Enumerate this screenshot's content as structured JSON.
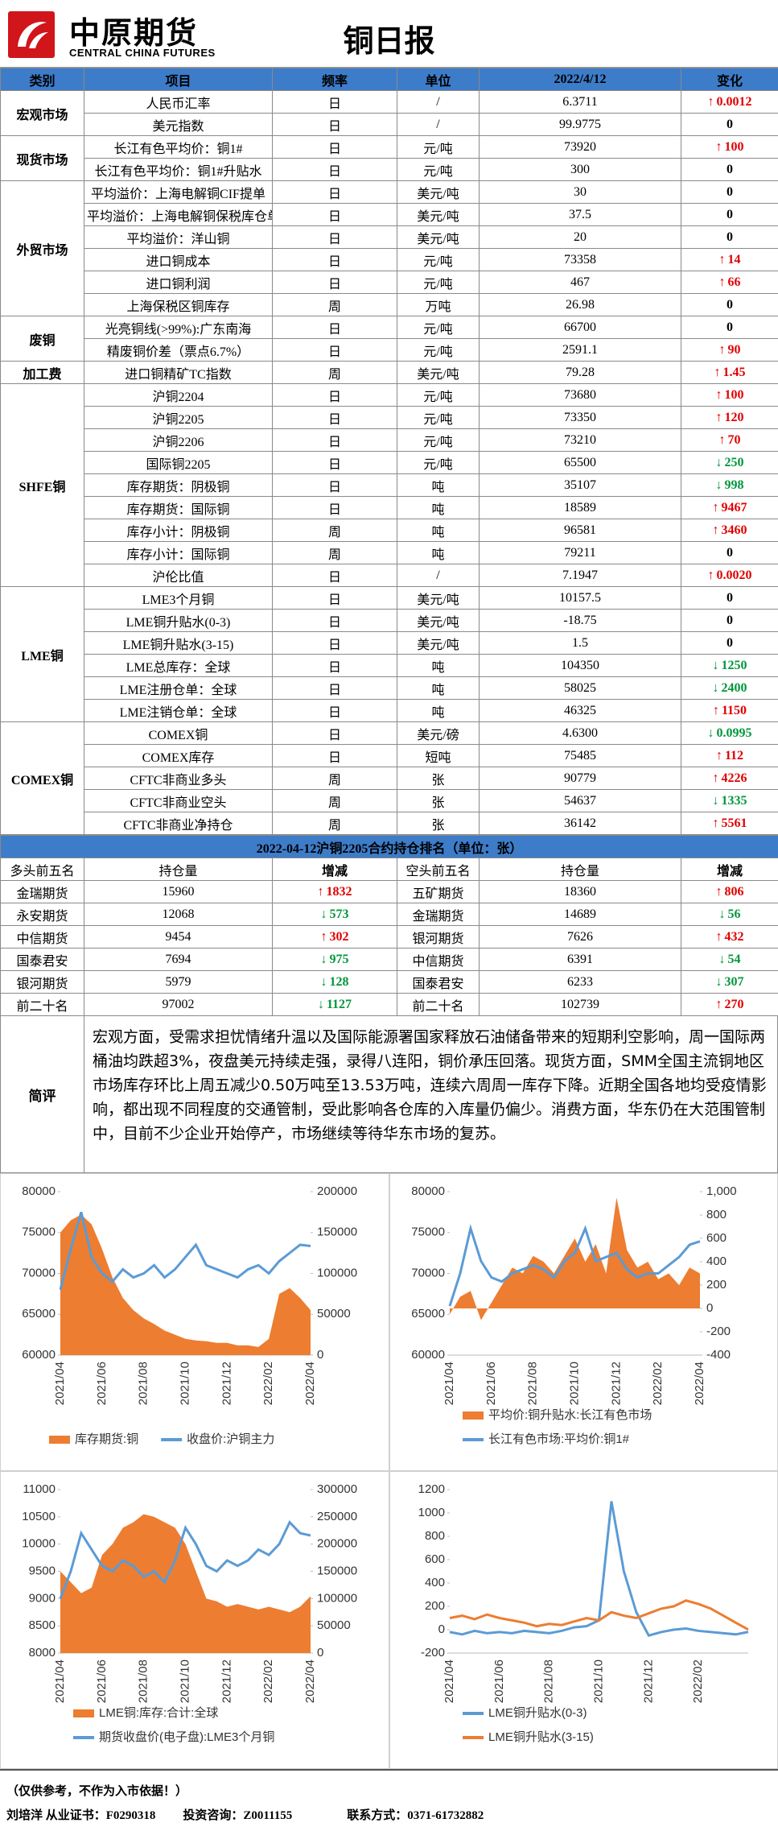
{
  "header": {
    "logo_cn": "中原期货",
    "logo_en": "CENTRAL CHINA FUTURES",
    "title": "铜日报"
  },
  "table": {
    "header": [
      "类别",
      "项目",
      "频率",
      "单位",
      "2022/4/12",
      "变化"
    ],
    "sections": [
      {
        "category": "宏观市场",
        "rows": [
          {
            "item": "人民币汇率",
            "freq": "日",
            "unit": "/",
            "value": "6.3711",
            "change": "0.0012",
            "dir": "up"
          },
          {
            "item": "美元指数",
            "freq": "日",
            "unit": "/",
            "value": "99.9775",
            "change": "0"
          }
        ]
      },
      {
        "category": "现货市场",
        "rows": [
          {
            "item": "长江有色平均价：铜1#",
            "freq": "日",
            "unit": "元/吨",
            "value": "73920",
            "change": "100",
            "dir": "up"
          },
          {
            "item": "长江有色平均价：铜1#升贴水",
            "freq": "日",
            "unit": "元/吨",
            "value": "300",
            "change": "0"
          }
        ]
      },
      {
        "category": "外贸市场",
        "rows": [
          {
            "item": "平均溢价：上海电解铜CIF提单",
            "freq": "日",
            "unit": "美元/吨",
            "value": "30",
            "change": "0"
          },
          {
            "item": "平均溢价：上海电解铜保税库仓单",
            "freq": "日",
            "unit": "美元/吨",
            "value": "37.5",
            "change": "0"
          },
          {
            "item": "平均溢价：洋山铜",
            "freq": "日",
            "unit": "美元/吨",
            "value": "20",
            "change": "0"
          },
          {
            "item": "进口铜成本",
            "freq": "日",
            "unit": "元/吨",
            "value": "73358",
            "change": "14",
            "dir": "up"
          },
          {
            "item": "进口铜利润",
            "freq": "日",
            "unit": "元/吨",
            "value": "467",
            "change": "66",
            "dir": "up"
          },
          {
            "item": "上海保税区铜库存",
            "freq": "周",
            "unit": "万吨",
            "value": "26.98",
            "change": "0"
          }
        ]
      },
      {
        "category": "废铜",
        "rows": [
          {
            "item": "光亮铜线(>99%):广东南海",
            "freq": "日",
            "unit": "元/吨",
            "value": "66700",
            "change": "0"
          },
          {
            "item": "精废铜价差（票点6.7%）",
            "freq": "日",
            "unit": "元/吨",
            "value": "2591.1",
            "change": "90",
            "dir": "up"
          }
        ]
      },
      {
        "category": "加工费",
        "rows": [
          {
            "item": "进口铜精矿TC指数",
            "freq": "周",
            "unit": "美元/吨",
            "value": "79.28",
            "change": "1.45",
            "dir": "up"
          }
        ]
      },
      {
        "category": "SHFE铜",
        "rows": [
          {
            "item": "沪铜2204",
            "freq": "日",
            "unit": "元/吨",
            "value": "73680",
            "change": "100",
            "dir": "up"
          },
          {
            "item": "沪铜2205",
            "freq": "日",
            "unit": "元/吨",
            "value": "73350",
            "change": "120",
            "dir": "up"
          },
          {
            "item": "沪铜2206",
            "freq": "日",
            "unit": "元/吨",
            "value": "73210",
            "change": "70",
            "dir": "up"
          },
          {
            "item": "国际铜2205",
            "freq": "日",
            "unit": "元/吨",
            "value": "65500",
            "change": "250",
            "dir": "down"
          },
          {
            "item": "库存期货：阴极铜",
            "freq": "日",
            "unit": "吨",
            "value": "35107",
            "change": "998",
            "dir": "down"
          },
          {
            "item": "库存期货：国际铜",
            "freq": "日",
            "unit": "吨",
            "value": "18589",
            "change": "9467",
            "dir": "up"
          },
          {
            "item": "库存小计：阴极铜",
            "freq": "周",
            "unit": "吨",
            "value": "96581",
            "change": "3460",
            "dir": "up"
          },
          {
            "item": "库存小计：国际铜",
            "freq": "周",
            "unit": "吨",
            "value": "79211",
            "change": "0"
          },
          {
            "item": "沪伦比值",
            "freq": "日",
            "unit": "/",
            "value": "7.1947",
            "change": "0.0020",
            "dir": "up"
          }
        ]
      },
      {
        "category": "LME铜",
        "rows": [
          {
            "item": "LME3个月铜",
            "freq": "日",
            "unit": "美元/吨",
            "value": "10157.5",
            "change": "0"
          },
          {
            "item": "LME铜升贴水(0-3)",
            "freq": "日",
            "unit": "美元/吨",
            "value": "-18.75",
            "change": "0"
          },
          {
            "item": "LME铜升贴水(3-15)",
            "freq": "日",
            "unit": "美元/吨",
            "value": "1.5",
            "change": "0"
          },
          {
            "item": "LME总库存：全球",
            "freq": "日",
            "unit": "吨",
            "value": "104350",
            "change": "1250",
            "dir": "down"
          },
          {
            "item": "LME注册仓单：全球",
            "freq": "日",
            "unit": "吨",
            "value": "58025",
            "change": "2400",
            "dir": "down"
          },
          {
            "item": "LME注销仓单：全球",
            "freq": "日",
            "unit": "吨",
            "value": "46325",
            "change": "1150",
            "dir": "up"
          }
        ]
      },
      {
        "category": "COMEX铜",
        "rows": [
          {
            "item": "COMEX铜",
            "freq": "日",
            "unit": "美元/磅",
            "value": "4.6300",
            "change": "0.0995",
            "dir": "down"
          },
          {
            "item": "COMEX库存",
            "freq": "日",
            "unit": "短吨",
            "value": "75485",
            "change": "112",
            "dir": "up"
          },
          {
            "item": "CFTC非商业多头",
            "freq": "周",
            "unit": "张",
            "value": "90779",
            "change": "4226",
            "dir": "up"
          },
          {
            "item": "CFTC非商业空头",
            "freq": "周",
            "unit": "张",
            "value": "54637",
            "change": "1335",
            "dir": "down"
          },
          {
            "item": "CFTC非商业净持仓",
            "freq": "周",
            "unit": "张",
            "value": "36142",
            "change": "5561",
            "dir": "up"
          }
        ]
      }
    ]
  },
  "position": {
    "title": "2022-04-12沪铜2205合约持仓排名（单位：张）",
    "header": [
      "多头前五名",
      "持仓量",
      "增减",
      "空头前五名",
      "持仓量",
      "增减"
    ],
    "rows": [
      {
        "long": {
          "name": "金瑞期货",
          "volume": "15960",
          "change": "1832",
          "dir": "up"
        },
        "short": {
          "name": "五矿期货",
          "volume": "18360",
          "change": "806",
          "dir": "up"
        }
      },
      {
        "long": {
          "name": "永安期货",
          "volume": "12068",
          "change": "573",
          "dir": "down"
        },
        "short": {
          "name": "金瑞期货",
          "volume": "14689",
          "change": "56",
          "dir": "down"
        }
      },
      {
        "long": {
          "name": "中信期货",
          "volume": "9454",
          "change": "302",
          "dir": "up"
        },
        "short": {
          "name": "银河期货",
          "volume": "7626",
          "change": "432",
          "dir": "up"
        }
      },
      {
        "long": {
          "name": "国泰君安",
          "volume": "7694",
          "change": "975",
          "dir": "down"
        },
        "short": {
          "name": "中信期货",
          "volume": "6391",
          "change": "54",
          "dir": "down"
        }
      },
      {
        "long": {
          "name": "银河期货",
          "volume": "5979",
          "change": "128",
          "dir": "down"
        },
        "short": {
          "name": "国泰君安",
          "volume": "6233",
          "change": "307",
          "dir": "down"
        }
      },
      {
        "long": {
          "name": "前二十名",
          "volume": "97002",
          "change": "1127",
          "dir": "down"
        },
        "short": {
          "name": "前二十名",
          "volume": "102739",
          "change": "270",
          "dir": "up"
        }
      }
    ]
  },
  "review": {
    "label": "简评",
    "text": "宏观方面，受需求担忧情绪升温以及国际能源署国家释放石油储备带来的短期利空影响，周一国际两桶油均跌超3%，夜盘美元持续走强，录得八连阳，铜价承压回落。现货方面，SMM全国主流铜地区市场库存环比上周五减少0.50万吨至13.53万吨，连续六周周一库存下降。近期全国各地均受疫情影响，都出现不同程度的交通管制，受此影响各仓库的入库量仍偏少。消费方面，华东仍在大范围管制中，目前不少企业开始停产，市场继续等待华东市场的复苏。"
  },
  "charts": [
    {
      "type": "combo",
      "x": [
        "2021/04",
        null,
        null,
        null,
        "2021/06",
        null,
        null,
        null,
        "2021/08",
        null,
        null,
        null,
        "2021/10",
        null,
        null,
        null,
        "2021/12",
        null,
        null,
        null,
        "2022/02",
        null,
        null,
        null,
        "2022/04"
      ],
      "ylim": [
        60000,
        80000
      ],
      "yticks": [
        60000,
        65000,
        70000,
        75000,
        80000
      ],
      "y2lim": [
        0,
        200000
      ],
      "y2ticks": [
        0,
        50000,
        100000,
        150000,
        200000
      ],
      "series": [
        {
          "name": "库存期货:铜",
          "color": "#ed7d31",
          "kind": "area",
          "axis": "y2",
          "values": [
            150000,
            165000,
            172000,
            160000,
            130000,
            95000,
            70000,
            55000,
            45000,
            38000,
            30000,
            25000,
            20000,
            18000,
            17000,
            15000,
            15000,
            12000,
            12000,
            10000,
            20000,
            75000,
            82000,
            70000,
            55000
          ]
        },
        {
          "name": "收盘价:沪铜主力",
          "color": "#5b9bd5",
          "kind": "line",
          "axis": "y",
          "values": [
            68000,
            73000,
            77500,
            72000,
            70000,
            69000,
            70500,
            69500,
            70000,
            71000,
            69500,
            70500,
            72000,
            73500,
            71000,
            70500,
            70000,
            69500,
            70500,
            71000,
            70000,
            71500,
            72500,
            73500,
            73350
          ]
        }
      ]
    },
    {
      "type": "combo",
      "x": [
        "2021/04",
        null,
        null,
        null,
        "2021/06",
        null,
        null,
        null,
        "2021/08",
        null,
        null,
        null,
        "2021/10",
        null,
        null,
        null,
        "2021/12",
        null,
        null,
        null,
        "2022/02",
        null,
        null,
        null,
        "2022/04"
      ],
      "ylim": [
        60000,
        80000
      ],
      "yticks": [
        60000,
        65000,
        70000,
        75000,
        80000
      ],
      "y2lim": [
        -400,
        1000
      ],
      "y2ticks": [
        -400,
        -200,
        0,
        200,
        400,
        600,
        800,
        {
          "value": 1000,
          "label": "1,000"
        }
      ],
      "series": [
        {
          "name": "平均价:铜升贴水:长江有色市场",
          "color": "#ed7d31",
          "kind": "area",
          "axis": "y2",
          "values": [
            -50,
            100,
            150,
            -100,
            50,
            200,
            350,
            300,
            450,
            400,
            300,
            450,
            600,
            400,
            550,
            300,
            950,
            500,
            350,
            400,
            250,
            300,
            200,
            350,
            300
          ]
        },
        {
          "name": "长江有色市场:平均价:铜1#",
          "color": "#5b9bd5",
          "kind": "line",
          "axis": "y",
          "values": [
            66000,
            70000,
            75500,
            71500,
            69500,
            69000,
            70000,
            70500,
            71000,
            70500,
            69500,
            71500,
            72500,
            75500,
            71500,
            72000,
            72500,
            70500,
            69500,
            70000,
            70000,
            71000,
            72000,
            73500,
            73920
          ]
        }
      ]
    },
    {
      "type": "combo",
      "x": [
        "2021/04",
        null,
        null,
        null,
        "2021/06",
        null,
        null,
        null,
        "2021/08",
        null,
        null,
        null,
        "2021/10",
        null,
        null,
        null,
        "2021/12",
        null,
        null,
        null,
        "2022/02",
        null,
        null,
        null,
        "2022/04"
      ],
      "ylim": [
        8000,
        11000
      ],
      "yticks": [
        8000,
        8500,
        9000,
        9500,
        10000,
        10500,
        11000
      ],
      "y2lim": [
        0,
        300000
      ],
      "y2ticks": [
        0,
        50000,
        100000,
        150000,
        200000,
        250000,
        300000
      ],
      "series": [
        {
          "name": "LME铜:库存:合计:全球",
          "color": "#ed7d31",
          "kind": "area",
          "axis": "y2",
          "values": [
            150000,
            130000,
            110000,
            120000,
            180000,
            200000,
            230000,
            240000,
            255000,
            250000,
            240000,
            230000,
            200000,
            150000,
            100000,
            95000,
            85000,
            90000,
            85000,
            80000,
            85000,
            80000,
            75000,
            85000,
            104350
          ]
        },
        {
          "name": "期货收盘价(电子盘):LME3个月铜",
          "color": "#5b9bd5",
          "kind": "line",
          "axis": "y",
          "values": [
            9000,
            9500,
            10200,
            9900,
            9600,
            9500,
            9700,
            9600,
            9400,
            9500,
            9300,
            9700,
            10300,
            10000,
            9600,
            9500,
            9700,
            9600,
            9700,
            9900,
            9800,
            10000,
            10400,
            10200,
            10157.5
          ]
        }
      ]
    },
    {
      "type": "line",
      "x": [
        "2021/04",
        null,
        null,
        null,
        "2021/06",
        null,
        null,
        null,
        "2021/08",
        null,
        null,
        null,
        "2021/10",
        null,
        null,
        null,
        "2021/12",
        null,
        null,
        null,
        "2022/02",
        null,
        null,
        null,
        null
      ],
      "ylim": [
        -200,
        1200
      ],
      "yticks": [
        -200,
        0,
        200,
        400,
        600,
        800,
        1000,
        1200
      ],
      "series": [
        {
          "name": "LME铜升贴水(0-3)",
          "color": "#5b9bd5",
          "kind": "line",
          "axis": "y",
          "values": [
            -20,
            -40,
            -10,
            -30,
            -20,
            -30,
            -10,
            -20,
            -30,
            -10,
            20,
            30,
            80,
            1100,
            500,
            150,
            -50,
            -20,
            0,
            10,
            -10,
            -20,
            -30,
            -40,
            -18.75
          ]
        },
        {
          "name": "LME铜升贴水(3-15)",
          "color": "#ed7d31",
          "kind": "line",
          "axis": "y",
          "values": [
            100,
            120,
            90,
            130,
            100,
            80,
            60,
            30,
            50,
            40,
            70,
            100,
            80,
            150,
            120,
            100,
            140,
            180,
            200,
            250,
            220,
            180,
            120,
            60,
            1.5
          ]
        }
      ]
    }
  ],
  "footer": {
    "note": "（仅供参考，不作为入市依据！）",
    "author": "刘培洋  从业证书：F0290318",
    "license": "投资咨询：Z0011155",
    "consult": "",
    "contact": "联系方式：0371-61732882"
  }
}
